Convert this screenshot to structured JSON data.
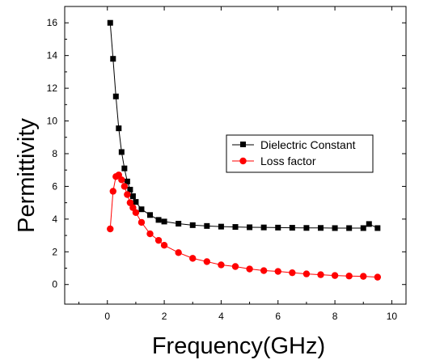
{
  "chart_data": {
    "type": "line",
    "xlabel": "Frequency(GHz)",
    "ylabel": "Permittivity",
    "xlim": [
      -1.5,
      10.5
    ],
    "ylim": [
      -1.2,
      17
    ],
    "x_ticks": [
      0,
      2,
      4,
      6,
      8,
      10
    ],
    "y_ticks": [
      0,
      2,
      4,
      6,
      8,
      10,
      12,
      14,
      16
    ],
    "x_tick_labels": [
      "0",
      "2",
      "4",
      "6",
      "8",
      "10"
    ],
    "y_tick_labels": [
      "0",
      "2",
      "4",
      "6",
      "8",
      "10",
      "12",
      "14",
      "16"
    ],
    "legend_position": "center-right",
    "series": [
      {
        "name": "Dielectric Constant",
        "color": "#000000",
        "marker": "square",
        "x": [
          0.1,
          0.2,
          0.3,
          0.4,
          0.5,
          0.6,
          0.7,
          0.8,
          0.9,
          1.0,
          1.2,
          1.5,
          1.8,
          2.0,
          2.5,
          3.0,
          3.5,
          4.0,
          4.5,
          5.0,
          5.5,
          6.0,
          6.5,
          7.0,
          7.5,
          8.0,
          8.5,
          9.0,
          9.2,
          9.5
        ],
        "y": [
          16.0,
          13.8,
          11.5,
          9.55,
          8.1,
          7.1,
          6.3,
          5.8,
          5.4,
          5.05,
          4.6,
          4.25,
          3.95,
          3.85,
          3.72,
          3.63,
          3.58,
          3.54,
          3.52,
          3.5,
          3.49,
          3.48,
          3.47,
          3.46,
          3.46,
          3.45,
          3.45,
          3.45,
          3.7,
          3.45
        ]
      },
      {
        "name": "Loss factor",
        "color": "#ff0000",
        "marker": "circle",
        "x": [
          0.1,
          0.2,
          0.3,
          0.4,
          0.5,
          0.6,
          0.7,
          0.8,
          0.9,
          1.0,
          1.2,
          1.5,
          1.8,
          2.0,
          2.5,
          3.0,
          3.5,
          4.0,
          4.5,
          5.0,
          5.5,
          6.0,
          6.5,
          7.0,
          7.5,
          8.0,
          8.5,
          9.0,
          9.5
        ],
        "y": [
          3.4,
          5.7,
          6.6,
          6.7,
          6.4,
          6.0,
          5.5,
          5.0,
          4.7,
          4.4,
          3.8,
          3.1,
          2.7,
          2.4,
          1.95,
          1.6,
          1.4,
          1.2,
          1.1,
          0.95,
          0.85,
          0.8,
          0.72,
          0.65,
          0.6,
          0.55,
          0.52,
          0.5,
          0.45
        ]
      }
    ]
  }
}
